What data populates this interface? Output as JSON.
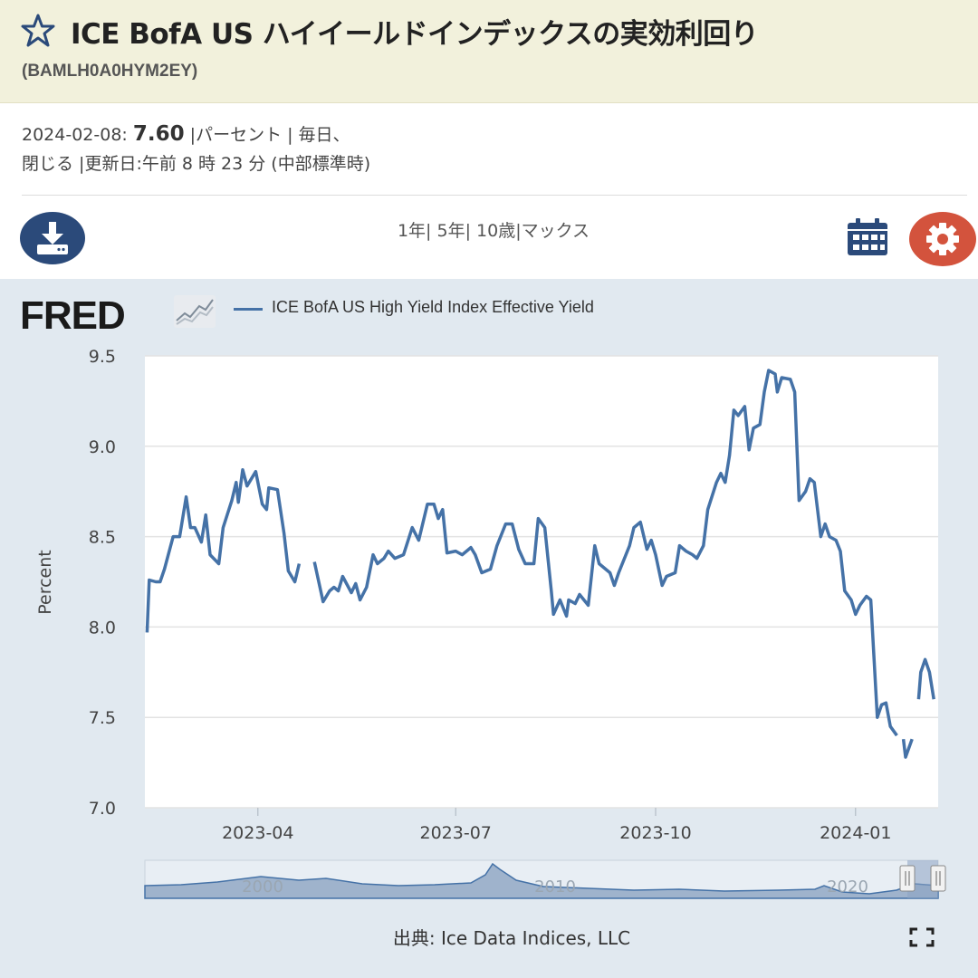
{
  "header": {
    "title": "ICE BofA US ハイイールドインデックスの実効利回り",
    "series_id": "(BAMLH0A0HYM2EY)"
  },
  "meta": {
    "date": "2024-02-08:",
    "value": "7.60",
    "rest1": " |パーセント | 毎日、",
    "rest2": "閉じる |更新日:午前 8 時 23 分 (中部標準時)"
  },
  "ranges": [
    "1年|",
    "5年|",
    "10歳|",
    "マックス"
  ],
  "icons": {
    "download": "download-icon",
    "calendar": "calendar-icon",
    "settings": "gear-icon",
    "star": "star-icon",
    "fullscreen": "fullscreen-icon"
  },
  "logo": {
    "text": "FRED"
  },
  "legend": {
    "series_name": "ICE BofA US High Yield Index Effective Yield"
  },
  "source": "出典: Ice Data Indices, LLC",
  "chart_data": {
    "type": "line",
    "ylabel": "Percent",
    "ylim": [
      7.0,
      9.5
    ],
    "yticks": [
      "7.0",
      "7.5",
      "8.0",
      "8.5",
      "9.0",
      "9.5"
    ],
    "xticks": [
      "2023-04",
      "2023-07",
      "2023-10",
      "2024-01"
    ],
    "grid": true,
    "legend_placement": "top-left",
    "color": "#4572a7",
    "series": [
      {
        "name": "ICE BofA US High Yield Index Effective Yield",
        "points": [
          [
            "2023-02-09",
            7.97
          ],
          [
            "2023-02-10",
            8.26
          ],
          [
            "2023-02-13",
            8.25
          ],
          [
            "2023-02-15",
            8.25
          ],
          [
            "2023-02-17",
            8.32
          ],
          [
            "2023-02-21",
            8.5
          ],
          [
            "2023-02-24",
            8.5
          ],
          [
            "2023-02-27",
            8.72
          ],
          [
            "2023-03-01",
            8.55
          ],
          [
            "2023-03-03",
            8.55
          ],
          [
            "2023-03-06",
            8.47
          ],
          [
            "2023-03-08",
            8.62
          ],
          [
            "2023-03-10",
            8.4
          ],
          [
            "2023-03-14",
            8.35
          ],
          [
            "2023-03-16",
            8.55
          ],
          [
            "2023-03-20",
            8.7
          ],
          [
            "2023-03-22",
            8.8
          ],
          [
            "2023-03-23",
            8.69
          ],
          [
            "2023-03-25",
            8.87
          ],
          [
            "2023-03-27",
            8.78
          ],
          [
            "2023-03-31",
            8.86
          ],
          [
            "2023-04-03",
            8.68
          ],
          [
            "2023-04-05",
            8.65
          ],
          [
            "2023-04-06",
            8.77
          ],
          [
            "2023-04-10",
            8.76
          ],
          [
            "2023-04-13",
            8.52
          ],
          [
            "2023-04-15",
            8.31
          ],
          [
            "2023-04-18",
            8.25
          ],
          [
            "2023-04-20",
            8.35
          ],
          [
            null,
            null
          ],
          [
            "2023-04-27",
            8.36
          ],
          [
            "2023-04-29",
            8.25
          ],
          [
            "2023-05-01",
            8.14
          ],
          [
            "2023-05-04",
            8.2
          ],
          [
            "2023-05-06",
            8.22
          ],
          [
            "2023-05-08",
            8.2
          ],
          [
            "2023-05-10",
            8.28
          ],
          [
            "2023-05-14",
            8.19
          ],
          [
            "2023-05-16",
            8.24
          ],
          [
            "2023-05-18",
            8.15
          ],
          [
            "2023-05-21",
            8.22
          ],
          [
            "2023-05-24",
            8.4
          ],
          [
            "2023-05-26",
            8.35
          ],
          [
            "2023-05-29",
            8.38
          ],
          [
            "2023-05-31",
            8.42
          ],
          [
            "2023-06-03",
            8.38
          ],
          [
            "2023-06-07",
            8.4
          ],
          [
            "2023-06-11",
            8.55
          ],
          [
            "2023-06-14",
            8.48
          ],
          [
            "2023-06-18",
            8.68
          ],
          [
            "2023-06-21",
            8.68
          ],
          [
            "2023-06-23",
            8.6
          ],
          [
            "2023-06-25",
            8.65
          ],
          [
            "2023-06-27",
            8.41
          ],
          [
            "2023-07-01",
            8.42
          ],
          [
            "2023-07-04",
            8.4
          ],
          [
            "2023-07-08",
            8.44
          ],
          [
            "2023-07-10",
            8.4
          ],
          [
            "2023-07-13",
            8.3
          ],
          [
            "2023-07-17",
            8.32
          ],
          [
            "2023-07-20",
            8.45
          ],
          [
            "2023-07-24",
            8.57
          ],
          [
            "2023-07-27",
            8.57
          ],
          [
            "2023-07-30",
            8.43
          ],
          [
            "2023-08-02",
            8.35
          ],
          [
            "2023-08-06",
            8.35
          ],
          [
            "2023-08-08",
            8.6
          ],
          [
            "2023-08-11",
            8.55
          ],
          [
            "2023-08-14",
            8.2
          ],
          [
            "2023-08-15",
            8.07
          ],
          [
            "2023-08-18",
            8.15
          ],
          [
            "2023-08-21",
            8.06
          ],
          [
            "2023-08-22",
            8.15
          ],
          [
            "2023-08-25",
            8.13
          ],
          [
            "2023-08-27",
            8.18
          ],
          [
            "2023-08-31",
            8.12
          ],
          [
            "2023-09-03",
            8.45
          ],
          [
            "2023-09-05",
            8.35
          ],
          [
            "2023-09-10",
            8.3
          ],
          [
            "2023-09-12",
            8.23
          ],
          [
            "2023-09-14",
            8.3
          ],
          [
            "2023-09-19",
            8.45
          ],
          [
            "2023-09-21",
            8.55
          ],
          [
            "2023-09-24",
            8.58
          ],
          [
            "2023-09-27",
            8.43
          ],
          [
            "2023-09-29",
            8.48
          ],
          [
            "2023-10-01",
            8.4
          ],
          [
            "2023-10-04",
            8.23
          ],
          [
            "2023-10-06",
            8.28
          ],
          [
            "2023-10-10",
            8.3
          ],
          [
            "2023-10-12",
            8.45
          ],
          [
            "2023-10-15",
            8.42
          ],
          [
            "2023-10-18",
            8.4
          ],
          [
            "2023-10-20",
            8.38
          ],
          [
            "2023-10-23",
            8.45
          ],
          [
            "2023-10-25",
            8.65
          ],
          [
            "2023-10-29",
            8.8
          ],
          [
            "2023-10-31",
            8.85
          ],
          [
            "2023-11-02",
            8.8
          ],
          [
            "2023-11-04",
            8.95
          ],
          [
            "2023-11-06",
            9.2
          ],
          [
            "2023-11-08",
            9.17
          ],
          [
            "2023-11-11",
            9.22
          ],
          [
            "2023-11-13",
            8.98
          ],
          [
            "2023-11-15",
            9.1
          ],
          [
            "2023-11-18",
            9.12
          ],
          [
            "2023-11-20",
            9.3
          ],
          [
            "2023-11-22",
            9.42
          ],
          [
            "2023-11-25",
            9.4
          ],
          [
            "2023-11-26",
            9.3
          ],
          [
            "2023-11-28",
            9.38
          ],
          [
            "2023-12-02",
            9.37
          ],
          [
            "2023-12-04",
            9.3
          ],
          [
            "2023-12-06",
            8.7
          ],
          [
            "2023-12-09",
            8.75
          ],
          [
            "2023-12-11",
            8.82
          ],
          [
            "2023-12-13",
            8.8
          ],
          [
            "2023-12-16",
            8.5
          ],
          [
            "2023-12-18",
            8.57
          ],
          [
            "2023-12-20",
            8.5
          ],
          [
            "2023-12-23",
            8.48
          ],
          [
            "2023-12-25",
            8.42
          ],
          [
            "2023-12-27",
            8.2
          ],
          [
            "2023-12-30",
            8.15
          ],
          [
            "2024-01-01",
            8.07
          ],
          [
            "2024-01-03",
            8.12
          ],
          [
            "2024-01-06",
            8.17
          ],
          [
            "2024-01-08",
            8.15
          ],
          [
            "2024-01-11",
            7.5
          ],
          [
            "2024-01-13",
            7.57
          ],
          [
            "2024-01-15",
            7.58
          ],
          [
            "2024-01-17",
            7.45
          ],
          [
            "2024-01-20",
            7.4
          ],
          [
            null,
            null
          ],
          [
            "2024-01-23",
            7.38
          ],
          [
            "2024-01-24",
            7.28
          ],
          [
            "2024-01-27",
            7.38
          ],
          [
            null,
            null
          ],
          [
            "2024-01-30",
            7.6
          ],
          [
            "2024-01-31",
            7.75
          ],
          [
            "2024-02-02",
            7.82
          ],
          [
            "2024-02-04",
            7.75
          ],
          [
            "2024-02-06",
            7.6
          ]
        ]
      }
    ]
  },
  "navigator": {
    "labels": [
      "2000",
      "2010",
      "2020"
    ]
  }
}
